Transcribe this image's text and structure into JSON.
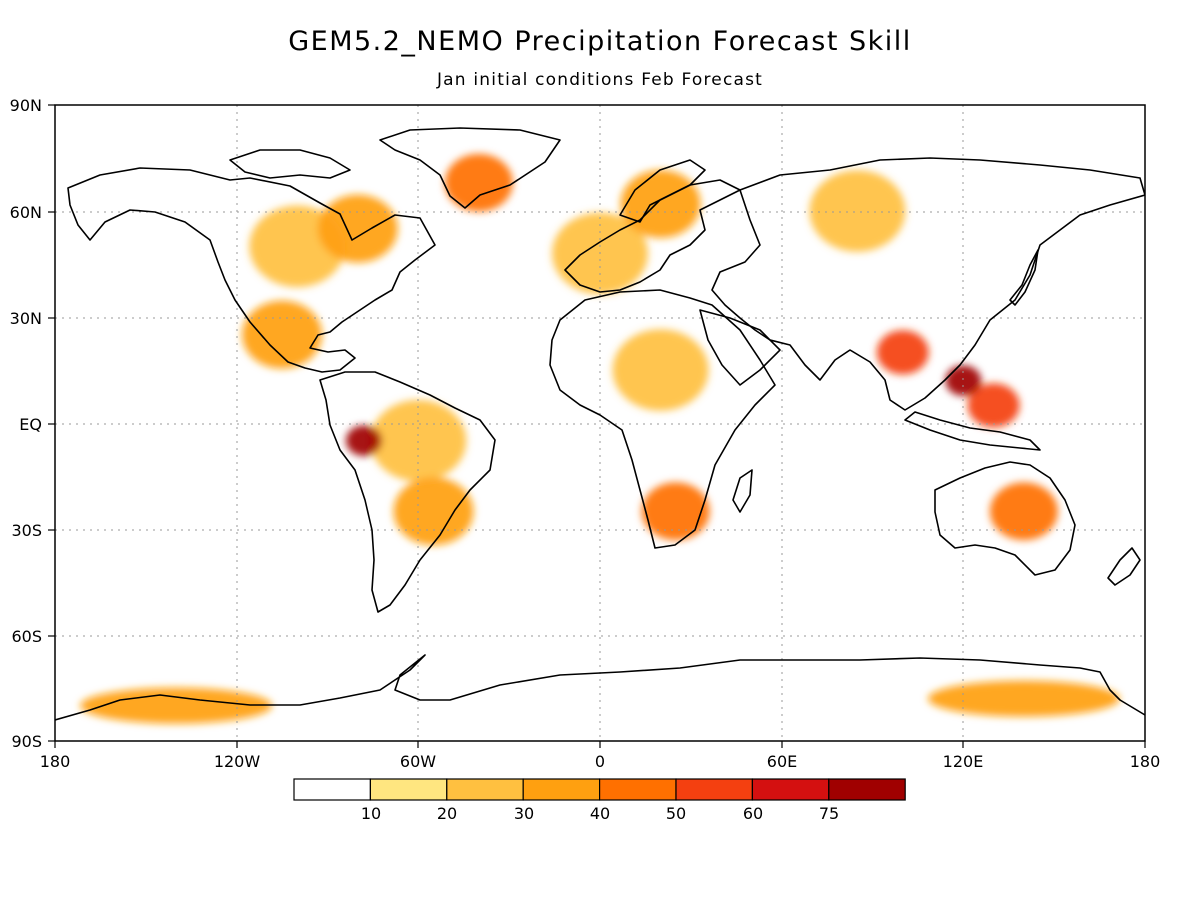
{
  "title": "GEM5.2_NEMO Precipitation Forecast Skill",
  "subtitle": "Jan initial conditions  Feb Forecast",
  "lat_labels": [
    "90N",
    "60N",
    "30N",
    "EQ",
    "30S",
    "60S",
    "90S"
  ],
  "lon_labels": [
    "180",
    "120W",
    "60W",
    "0",
    "60E",
    "120E",
    "180"
  ],
  "colorbar": {
    "levels": [
      "10",
      "20",
      "30",
      "40",
      "50",
      "60",
      "75"
    ],
    "colors": [
      "#ffffff",
      "#ffe680",
      "#ffc040",
      "#ffa010",
      "#ff7000",
      "#f44010",
      "#d41010",
      "#a00000"
    ]
  },
  "chart_data": {
    "type": "heatmap",
    "title": "GEM5.2_NEMO Precipitation Forecast Skill",
    "subtitle": "Jan initial conditions  Feb Forecast",
    "x_range": [
      -180,
      180
    ],
    "y_range": [
      -90,
      90
    ],
    "grid": true,
    "regions": [
      {
        "lon": -105,
        "lat": 25,
        "level": 3
      },
      {
        "lon": -100,
        "lat": 50,
        "level": 2
      },
      {
        "lon": -80,
        "lat": 55,
        "level": 3
      },
      {
        "lon": -40,
        "lat": 68,
        "level": 4
      },
      {
        "lon": -78,
        "lat": -5,
        "level": 7
      },
      {
        "lon": -60,
        "lat": -5,
        "level": 2
      },
      {
        "lon": -55,
        "lat": -25,
        "level": 3
      },
      {
        "lon": 20,
        "lat": 62,
        "level": 3
      },
      {
        "lon": 0,
        "lat": 48,
        "level": 2
      },
      {
        "lon": 25,
        "lat": -25,
        "level": 4
      },
      {
        "lon": 20,
        "lat": 15,
        "level": 2
      },
      {
        "lon": 85,
        "lat": 60,
        "level": 2
      },
      {
        "lon": 100,
        "lat": 20,
        "level": 5
      },
      {
        "lon": 120,
        "lat": 12,
        "level": 7
      },
      {
        "lon": 130,
        "lat": 5,
        "level": 5
      },
      {
        "lon": 140,
        "lat": -25,
        "level": 4
      },
      {
        "lon": -140,
        "lat": -80,
        "level": 3
      },
      {
        "lon": 140,
        "lat": -78,
        "level": 3
      }
    ]
  }
}
